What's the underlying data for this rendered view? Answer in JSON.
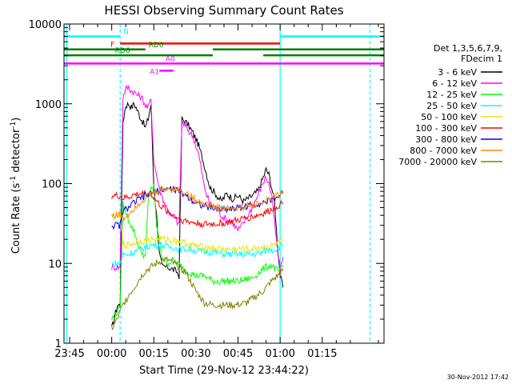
{
  "chart_data": {
    "type": "line",
    "title": "HESSI Observing Summary Count Rates",
    "xlabel": "Start Time (29-Nov-12 23:44:22)",
    "ylabel": "Count Rate (s⁻¹ detector⁻¹)",
    "ylabel_parts": {
      "pre": "Count Rate (s",
      "exp1": "-1",
      "mid": " detector",
      "exp2": "-1",
      "post": ")"
    },
    "timestamp": "30-Nov-2012 17:42",
    "yscale": "log",
    "ylim": [
      1,
      10000
    ],
    "xlim_minutes": [
      -17,
      97
    ],
    "x_unit": "minutes after 00:00 on 30-Nov-2012",
    "x_ticks": [
      {
        "m": -15,
        "label": "23:45"
      },
      {
        "m": 0,
        "label": "00:00"
      },
      {
        "m": 15,
        "label": "00:15"
      },
      {
        "m": 30,
        "label": "00:30"
      },
      {
        "m": 45,
        "label": "00:45"
      },
      {
        "m": 60,
        "label": "01:00"
      },
      {
        "m": 75,
        "label": "01:15"
      }
    ],
    "y_ticks": [
      {
        "v": 1,
        "label": "1"
      },
      {
        "v": 10,
        "label": "10"
      },
      {
        "v": 100,
        "label": "100"
      },
      {
        "v": 1000,
        "label": "1000"
      },
      {
        "v": 10000,
        "label": "10000"
      }
    ],
    "legend": {
      "header": [
        "Det 1,3,5,6,7,9,",
        "FDecim 1"
      ],
      "entries": [
        {
          "label": "3 - 6 keV",
          "color": "#000000"
        },
        {
          "label": "6 - 12 keV",
          "color": "#ff00ff"
        },
        {
          "label": "12 - 25 keV",
          "color": "#00ff00"
        },
        {
          "label": "25 - 50 keV",
          "color": "#00ffff"
        },
        {
          "label": "50 - 100 keV",
          "color": "#e6e600"
        },
        {
          "label": "100 - 300 keV",
          "color": "#ff0000"
        },
        {
          "label": "300 - 800 keV",
          "color": "#0000ff"
        },
        {
          "label": "800 - 7000 keV",
          "color": "#ff8800"
        },
        {
          "label": "7000 - 20000 keV",
          "color": "#808000"
        }
      ]
    },
    "flags": [
      {
        "label": "N",
        "color": "#00ffff",
        "segments": [
          [
            -17,
            3
          ],
          [
            60,
            97
          ]
        ],
        "level": 7000
      },
      {
        "label": "F",
        "color": "#ff0000",
        "segments": [
          [
            3,
            60
          ]
        ],
        "level": 5700
      },
      {
        "label": "RD0",
        "color": "#008000",
        "segments": [
          [
            -17,
            12
          ],
          [
            36,
            97
          ]
        ],
        "level": 4800
      },
      {
        "label": "RD6",
        "color": "#008000",
        "segments": [
          [
            -17,
            36
          ],
          [
            54,
            97
          ]
        ],
        "level": 4050
      },
      {
        "label": "A0",
        "color": "#ff00ff",
        "segments": [
          [
            -17,
            97
          ]
        ],
        "level": 3200
      },
      {
        "label": "A1",
        "color": "#ff00ff",
        "segments": [
          [
            17,
            22
          ]
        ],
        "level": 2600
      }
    ],
    "vlines": [
      {
        "m": -16,
        "color": "#00ffff",
        "style": "solid"
      },
      {
        "m": 3,
        "color": "#00ffff",
        "style": "dashed"
      },
      {
        "m": 60,
        "color": "#00ffff",
        "style": "solid"
      },
      {
        "m": 92,
        "color": "#00ffff",
        "style": "dashed"
      }
    ],
    "series": [
      {
        "name": "3 - 6 keV",
        "color": "#000000",
        "points": [
          [
            0,
            1.5
          ],
          [
            2,
            3
          ],
          [
            3,
            3
          ],
          [
            4,
            600
          ],
          [
            5,
            950
          ],
          [
            6,
            1000
          ],
          [
            7,
            900
          ],
          [
            8,
            1000
          ],
          [
            9,
            850
          ],
          [
            10,
            700
          ],
          [
            11,
            600
          ],
          [
            12,
            500
          ],
          [
            13,
            650
          ],
          [
            14,
            1000
          ],
          [
            15,
            90
          ],
          [
            16,
            40
          ],
          [
            17,
            13
          ],
          [
            18,
            9
          ],
          [
            20,
            9
          ],
          [
            23,
            8
          ],
          [
            24,
            7
          ],
          [
            25,
            650
          ],
          [
            27,
            560
          ],
          [
            29,
            430
          ],
          [
            31,
            300
          ],
          [
            33,
            170
          ],
          [
            35,
            90
          ],
          [
            37,
            75
          ],
          [
            39,
            60
          ],
          [
            41,
            75
          ],
          [
            43,
            65
          ],
          [
            45,
            70
          ],
          [
            47,
            60
          ],
          [
            50,
            70
          ],
          [
            52,
            80
          ],
          [
            54,
            120
          ],
          [
            55,
            150
          ],
          [
            56,
            130
          ],
          [
            57,
            90
          ],
          [
            58,
            60
          ],
          [
            59,
            18
          ],
          [
            60,
            7
          ],
          [
            61,
            5
          ]
        ]
      },
      {
        "name": "6 - 12 keV",
        "color": "#ff00ff",
        "points": [
          [
            0,
            9
          ],
          [
            2,
            9
          ],
          [
            3,
            9
          ],
          [
            4,
            1200
          ],
          [
            5,
            1550
          ],
          [
            6,
            1600
          ],
          [
            7,
            1450
          ],
          [
            8,
            1400
          ],
          [
            9,
            1300
          ],
          [
            10,
            1250
          ],
          [
            11,
            1150
          ],
          [
            12,
            950
          ],
          [
            13,
            900
          ],
          [
            14,
            1150
          ],
          [
            15,
            190
          ],
          [
            17,
            85
          ],
          [
            19,
            55
          ],
          [
            21,
            40
          ],
          [
            23,
            35
          ],
          [
            24,
            30
          ],
          [
            25,
            600
          ],
          [
            27,
            480
          ],
          [
            29,
            390
          ],
          [
            31,
            230
          ],
          [
            33,
            90
          ],
          [
            35,
            55
          ],
          [
            37,
            50
          ],
          [
            39,
            40
          ],
          [
            41,
            35
          ],
          [
            43,
            33
          ],
          [
            45,
            26
          ],
          [
            47,
            32
          ],
          [
            50,
            50
          ],
          [
            52,
            70
          ],
          [
            54,
            105
          ],
          [
            55,
            120
          ],
          [
            56,
            100
          ],
          [
            57,
            70
          ],
          [
            59,
            15
          ],
          [
            60,
            8
          ],
          [
            61,
            12
          ]
        ]
      },
      {
        "name": "12 - 25 keV",
        "color": "#00ff00",
        "points": [
          [
            0,
            2
          ],
          [
            2,
            2.5
          ],
          [
            3,
            3
          ],
          [
            4,
            55
          ],
          [
            6,
            35
          ],
          [
            8,
            25
          ],
          [
            10,
            15
          ],
          [
            12,
            12
          ],
          [
            13,
            60
          ],
          [
            14,
            90
          ],
          [
            15,
            90
          ],
          [
            16,
            30
          ],
          [
            18,
            12
          ],
          [
            20,
            10
          ],
          [
            22,
            11
          ],
          [
            25,
            9
          ],
          [
            27,
            8
          ],
          [
            30,
            7
          ],
          [
            33,
            7
          ],
          [
            36,
            6
          ],
          [
            40,
            6
          ],
          [
            45,
            6
          ],
          [
            50,
            6.5
          ],
          [
            53,
            8
          ],
          [
            55,
            9
          ],
          [
            57,
            9.5
          ],
          [
            59,
            8
          ],
          [
            60,
            8
          ],
          [
            61,
            9
          ]
        ]
      },
      {
        "name": "25 - 50 keV",
        "color": "#00ffff",
        "points": [
          [
            0,
            10
          ],
          [
            2,
            10
          ],
          [
            3,
            10
          ],
          [
            4,
            13
          ],
          [
            6,
            13
          ],
          [
            8,
            14
          ],
          [
            10,
            15
          ],
          [
            12,
            16
          ],
          [
            14,
            17
          ],
          [
            16,
            17
          ],
          [
            18,
            17
          ],
          [
            20,
            16
          ],
          [
            22,
            16
          ],
          [
            24,
            15
          ],
          [
            26,
            15
          ],
          [
            28,
            15
          ],
          [
            30,
            14.5
          ],
          [
            33,
            14
          ],
          [
            36,
            14
          ],
          [
            40,
            13
          ],
          [
            45,
            13
          ],
          [
            50,
            13
          ],
          [
            53,
            13.5
          ],
          [
            56,
            15
          ],
          [
            58,
            15
          ],
          [
            61,
            17
          ]
        ]
      },
      {
        "name": "50 - 100 keV",
        "color": "#e6e600",
        "points": [
          [
            0,
            40
          ],
          [
            2,
            40
          ],
          [
            3,
            40
          ],
          [
            4,
            17
          ],
          [
            6,
            17
          ],
          [
            8,
            18
          ],
          [
            10,
            19
          ],
          [
            12,
            19
          ],
          [
            14,
            20
          ],
          [
            16,
            20
          ],
          [
            18,
            20
          ],
          [
            20,
            20
          ],
          [
            22,
            19.5
          ],
          [
            24,
            19
          ],
          [
            26,
            18
          ],
          [
            28,
            17
          ],
          [
            30,
            16.5
          ],
          [
            33,
            16
          ],
          [
            36,
            15.5
          ],
          [
            40,
            15
          ],
          [
            45,
            15
          ],
          [
            50,
            15
          ],
          [
            53,
            16
          ],
          [
            56,
            16
          ],
          [
            58,
            17
          ],
          [
            61,
            19
          ]
        ]
      },
      {
        "name": "100 - 300 keV",
        "color": "#ff0000",
        "points": [
          [
            0,
            70
          ],
          [
            3,
            70
          ],
          [
            4,
            65
          ],
          [
            6,
            68
          ],
          [
            8,
            72
          ],
          [
            10,
            74
          ],
          [
            12,
            76
          ],
          [
            14,
            74
          ],
          [
            16,
            60
          ],
          [
            18,
            50
          ],
          [
            20,
            45
          ],
          [
            22,
            40
          ],
          [
            24,
            37
          ],
          [
            26,
            34
          ],
          [
            28,
            33
          ],
          [
            30,
            32
          ],
          [
            33,
            31
          ],
          [
            36,
            31
          ],
          [
            40,
            32
          ],
          [
            44,
            34
          ],
          [
            48,
            37
          ],
          [
            52,
            40
          ],
          [
            56,
            45
          ],
          [
            58,
            50
          ],
          [
            61,
            58
          ]
        ]
      },
      {
        "name": "300 - 800 keV",
        "color": "#0000ff",
        "points": [
          [
            0,
            30
          ],
          [
            3,
            30
          ],
          [
            4,
            45
          ],
          [
            6,
            50
          ],
          [
            8,
            58
          ],
          [
            10,
            64
          ],
          [
            12,
            70
          ],
          [
            14,
            76
          ],
          [
            16,
            80
          ],
          [
            18,
            84
          ],
          [
            20,
            86
          ],
          [
            22,
            85
          ],
          [
            24,
            80
          ],
          [
            26,
            73
          ],
          [
            28,
            65
          ],
          [
            30,
            58
          ],
          [
            33,
            52
          ],
          [
            36,
            49
          ],
          [
            40,
            48
          ],
          [
            44,
            49
          ],
          [
            48,
            52
          ],
          [
            52,
            56
          ],
          [
            56,
            60
          ],
          [
            58,
            65
          ],
          [
            61,
            75
          ]
        ]
      },
      {
        "name": "800 - 7000 keV",
        "color": "#ff8800",
        "points": [
          [
            0,
            40
          ],
          [
            3,
            40
          ],
          [
            4,
            36
          ],
          [
            6,
            42
          ],
          [
            8,
            50
          ],
          [
            10,
            58
          ],
          [
            12,
            66
          ],
          [
            14,
            74
          ],
          [
            16,
            80
          ],
          [
            18,
            84
          ],
          [
            20,
            86
          ],
          [
            22,
            86
          ],
          [
            24,
            84
          ],
          [
            26,
            78
          ],
          [
            28,
            70
          ],
          [
            30,
            63
          ],
          [
            33,
            56
          ],
          [
            36,
            52
          ],
          [
            40,
            49
          ],
          [
            44,
            49
          ],
          [
            48,
            52
          ],
          [
            52,
            56
          ],
          [
            56,
            62
          ],
          [
            58,
            68
          ],
          [
            61,
            78
          ]
        ]
      },
      {
        "name": "7000 - 20000 keV",
        "color": "#808000",
        "points": [
          [
            0,
            1.5
          ],
          [
            2,
            2
          ],
          [
            3,
            2.5
          ],
          [
            4,
            3
          ],
          [
            6,
            4
          ],
          [
            8,
            5
          ],
          [
            10,
            6.5
          ],
          [
            12,
            8
          ],
          [
            14,
            9
          ],
          [
            16,
            10
          ],
          [
            18,
            11
          ],
          [
            20,
            11
          ],
          [
            22,
            10
          ],
          [
            24,
            9
          ],
          [
            26,
            8
          ],
          [
            28,
            6
          ],
          [
            30,
            4.5
          ],
          [
            33,
            3.2
          ],
          [
            36,
            3
          ],
          [
            40,
            3
          ],
          [
            44,
            3
          ],
          [
            48,
            3.2
          ],
          [
            52,
            4
          ],
          [
            54,
            4.5
          ],
          [
            56,
            5.5
          ],
          [
            58,
            6.5
          ],
          [
            61,
            8
          ]
        ]
      }
    ]
  }
}
